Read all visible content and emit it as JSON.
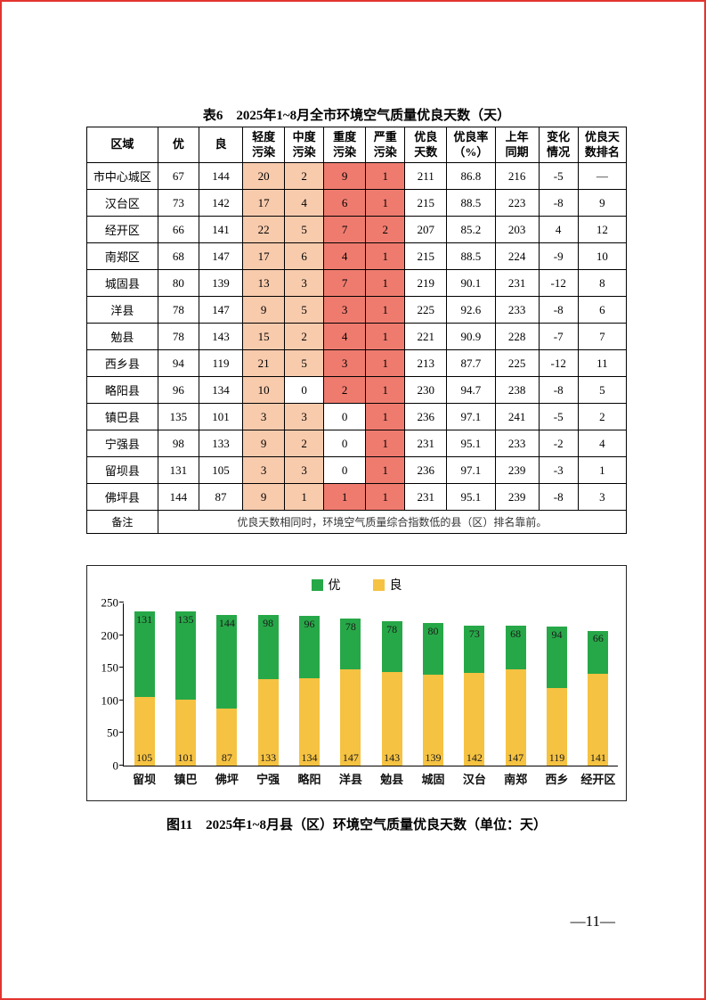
{
  "page": {
    "number": "—11—"
  },
  "colors": {
    "light_pollution_bg": "#F8CBAD",
    "heavy_pollution_bg": "#EF7B6F"
  },
  "table": {
    "title": "表6　2025年1~8月全市环境空气质量优良天数（天）",
    "headers": [
      "区域",
      "优",
      "良",
      "轻度\n污染",
      "中度\n污染",
      "重度\n污染",
      "严重\n污染",
      "优良\n天数",
      "优良率\n（%）",
      "上年\n同期",
      "变化\n情况",
      "优良天\n数排名"
    ],
    "rows": [
      [
        "市中心城区",
        "67",
        "144",
        "20",
        "2",
        "9",
        "1",
        "211",
        "86.8",
        "216",
        "-5",
        "—"
      ],
      [
        "汉台区",
        "73",
        "142",
        "17",
        "4",
        "6",
        "1",
        "215",
        "88.5",
        "223",
        "-8",
        "9"
      ],
      [
        "经开区",
        "66",
        "141",
        "22",
        "5",
        "7",
        "2",
        "207",
        "85.2",
        "203",
        "4",
        "12"
      ],
      [
        "南郑区",
        "68",
        "147",
        "17",
        "6",
        "4",
        "1",
        "215",
        "88.5",
        "224",
        "-9",
        "10"
      ],
      [
        "城固县",
        "80",
        "139",
        "13",
        "3",
        "7",
        "1",
        "219",
        "90.1",
        "231",
        "-12",
        "8"
      ],
      [
        "洋县",
        "78",
        "147",
        "9",
        "5",
        "3",
        "1",
        "225",
        "92.6",
        "233",
        "-8",
        "6"
      ],
      [
        "勉县",
        "78",
        "143",
        "15",
        "2",
        "4",
        "1",
        "221",
        "90.9",
        "228",
        "-7",
        "7"
      ],
      [
        "西乡县",
        "94",
        "119",
        "21",
        "5",
        "3",
        "1",
        "213",
        "87.7",
        "225",
        "-12",
        "11"
      ],
      [
        "略阳县",
        "96",
        "134",
        "10",
        "0",
        "2",
        "1",
        "230",
        "94.7",
        "238",
        "-8",
        "5"
      ],
      [
        "镇巴县",
        "135",
        "101",
        "3",
        "3",
        "0",
        "1",
        "236",
        "97.1",
        "241",
        "-5",
        "2"
      ],
      [
        "宁强县",
        "98",
        "133",
        "9",
        "2",
        "0",
        "1",
        "231",
        "95.1",
        "233",
        "-2",
        "4"
      ],
      [
        "留坝县",
        "131",
        "105",
        "3",
        "3",
        "0",
        "1",
        "236",
        "97.1",
        "239",
        "-3",
        "1"
      ],
      [
        "佛坪县",
        "144",
        "87",
        "9",
        "1",
        "1",
        "1",
        "231",
        "95.1",
        "239",
        "-8",
        "3"
      ]
    ],
    "note_label": "备注",
    "note": "优良天数相同时，环境空气质量综合指数低的县（区）排名靠前。"
  },
  "chart_data": {
    "type": "bar",
    "stacked": true,
    "title": "",
    "categories": [
      "留坝",
      "镇巴",
      "佛坪",
      "宁强",
      "略阳",
      "洋县",
      "勉县",
      "城固",
      "汉台",
      "南郑",
      "西乡",
      "经开区"
    ],
    "series": [
      {
        "name": "优",
        "color": "#27A848",
        "values": [
          131,
          135,
          144,
          98,
          96,
          78,
          78,
          80,
          73,
          68,
          94,
          66
        ]
      },
      {
        "name": "良",
        "color": "#F5C242",
        "values": [
          105,
          101,
          87,
          133,
          134,
          147,
          143,
          139,
          142,
          147,
          119,
          141
        ]
      }
    ],
    "ylim": [
      0,
      250
    ],
    "yticks": [
      0,
      50,
      100,
      150,
      200,
      250
    ],
    "legend_position": "top",
    "grid": false
  },
  "figure": {
    "caption": "图11　2025年1~8月县（区）环境空气质量优良天数（单位：天）"
  }
}
